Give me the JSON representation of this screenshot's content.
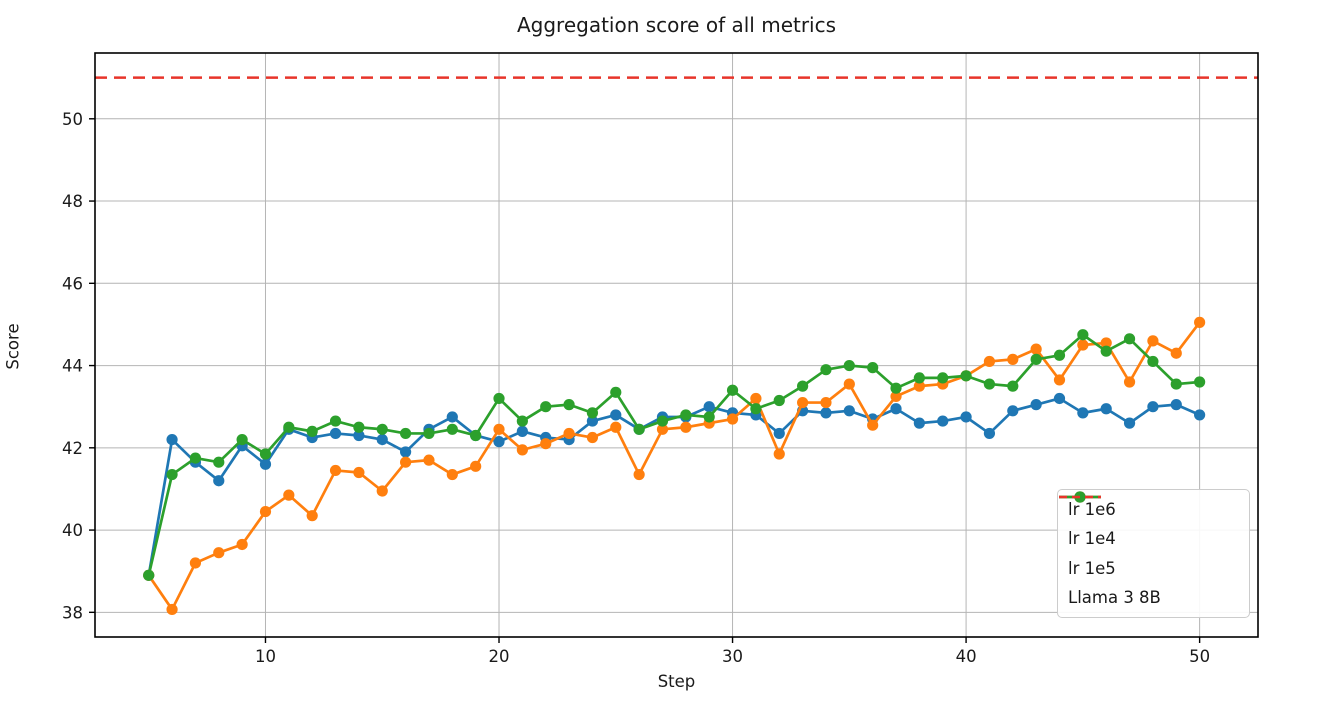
{
  "figure": {
    "background": "#ffffff",
    "text_color": "#1a1a1a"
  },
  "chart_data": {
    "type": "line",
    "title": "Aggregation score of all metrics",
    "xlabel": "Step",
    "ylabel": "Score",
    "xlim": [
      2.7,
      52.5
    ],
    "ylim": [
      37.4,
      51.6
    ],
    "xticks": [
      10,
      20,
      30,
      40,
      50
    ],
    "yticks": [
      38,
      40,
      42,
      44,
      46,
      48,
      50
    ],
    "grid": true,
    "grid_color": "#b4b4b4",
    "spine_color": "#000000",
    "legend_position": "lower right",
    "x": [
      5,
      6,
      7,
      8,
      9,
      10,
      11,
      12,
      13,
      14,
      15,
      16,
      17,
      18,
      19,
      20,
      21,
      22,
      23,
      24,
      25,
      26,
      27,
      28,
      29,
      30,
      31,
      32,
      33,
      34,
      35,
      36,
      37,
      38,
      39,
      40,
      41,
      42,
      43,
      44,
      45,
      46,
      47,
      48,
      49,
      50
    ],
    "series": [
      {
        "name": "lr 1e6",
        "color": "#1f77b4",
        "style": "solid",
        "marker": "circle",
        "values": [
          38.9,
          42.2,
          41.65,
          41.2,
          42.05,
          41.6,
          42.45,
          42.25,
          42.35,
          42.3,
          42.2,
          41.9,
          42.45,
          42.75,
          42.3,
          42.15,
          42.4,
          42.25,
          42.2,
          42.65,
          42.8,
          42.45,
          42.75,
          42.75,
          43.0,
          42.85,
          42.8,
          42.35,
          42.9,
          42.85,
          42.9,
          42.7,
          42.95,
          42.6,
          42.65,
          42.75,
          42.35,
          42.9,
          43.05,
          43.2,
          42.85,
          42.95,
          42.6,
          43.0,
          43.05,
          42.8
        ]
      },
      {
        "name": "lr 1e4",
        "color": "#ff7f0e",
        "style": "solid",
        "marker": "circle",
        "values": [
          38.9,
          38.07,
          39.2,
          39.45,
          39.65,
          40.45,
          40.85,
          40.35,
          41.45,
          41.4,
          40.95,
          41.65,
          41.7,
          41.35,
          41.55,
          42.45,
          41.95,
          42.1,
          42.35,
          42.25,
          42.5,
          41.35,
          42.45,
          42.5,
          42.6,
          42.7,
          43.2,
          41.85,
          43.1,
          43.1,
          43.55,
          42.55,
          43.25,
          43.5,
          43.55,
          43.75,
          44.1,
          44.15,
          44.4,
          43.65,
          44.5,
          44.55,
          43.6,
          44.6,
          44.3,
          45.05
        ]
      },
      {
        "name": "lr 1e5",
        "color": "#2ca02c",
        "style": "solid",
        "marker": "circle",
        "values": [
          38.9,
          41.35,
          41.75,
          41.65,
          42.2,
          41.85,
          42.5,
          42.4,
          42.65,
          42.5,
          42.45,
          42.35,
          42.35,
          42.45,
          42.3,
          43.2,
          42.65,
          43.0,
          43.05,
          42.85,
          43.35,
          42.45,
          42.65,
          42.8,
          42.75,
          43.4,
          42.95,
          43.15,
          43.5,
          43.9,
          44.0,
          43.95,
          43.45,
          43.7,
          43.7,
          43.75,
          43.55,
          43.5,
          44.15,
          44.25,
          44.75,
          44.35,
          44.65,
          44.1,
          43.55,
          43.6
        ]
      },
      {
        "name": "Llama 3 8B",
        "color": "#e8342a",
        "style": "dashed",
        "marker": "none",
        "type": "hline",
        "hline_y": 51
      }
    ]
  }
}
